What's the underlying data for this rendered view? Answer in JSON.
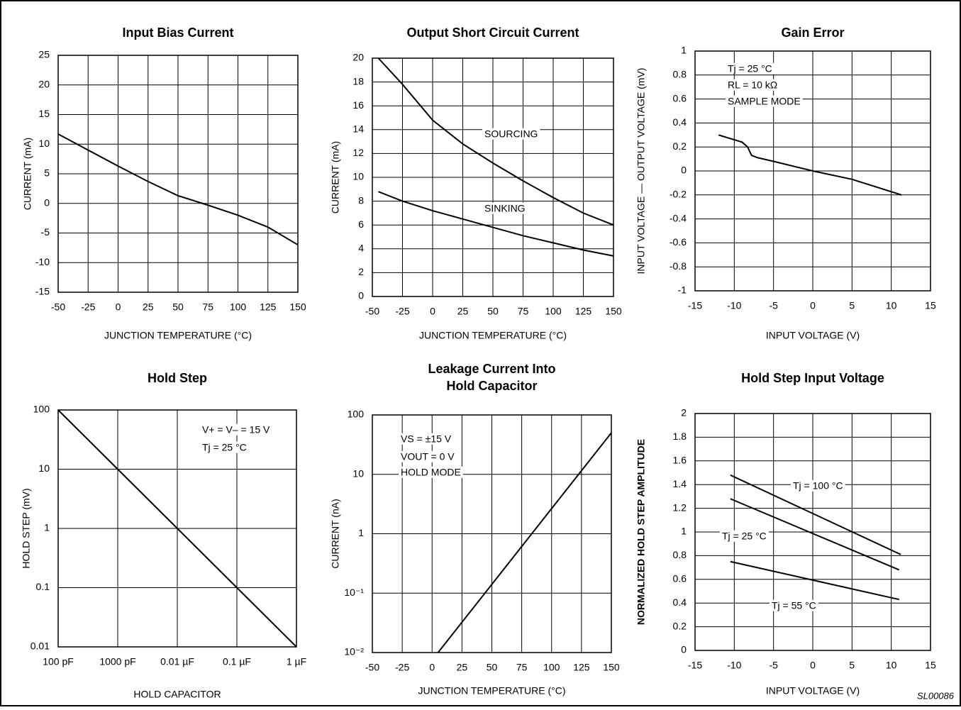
{
  "chart_data": [
    {
      "type": "line",
      "title": "Input Bias Current",
      "xlabel": "JUNCTION TEMPERATURE (°C)",
      "ylabel": "CURRENT (mA)",
      "xlim": [
        -50,
        150
      ],
      "ylim": [
        -15,
        25
      ],
      "xticks": [
        -50,
        -25,
        0,
        25,
        50,
        75,
        100,
        125,
        150
      ],
      "yticks": [
        -15,
        -10,
        -5,
        0,
        5,
        10,
        15,
        20,
        25
      ],
      "grid": true,
      "series": [
        {
          "color": "#000000",
          "x": [
            -50,
            -25,
            0,
            25,
            50,
            75,
            100,
            125,
            150
          ],
          "values": [
            11.7,
            9,
            6.3,
            3.7,
            1.3,
            -0.3,
            -2,
            -4,
            -7
          ]
        }
      ]
    },
    {
      "type": "line",
      "title": "Output Short Circuit Current",
      "xlabel": "JUNCTION TEMPERATURE (°C)",
      "ylabel": "CURRENT (mA)",
      "xlim": [
        -50,
        150
      ],
      "ylim": [
        0,
        20
      ],
      "xticks": [
        -50,
        -25,
        0,
        25,
        50,
        75,
        100,
        125,
        150
      ],
      "yticks": [
        0,
        2,
        4,
        6,
        8,
        10,
        12,
        14,
        16,
        18,
        20
      ],
      "grid": true,
      "series": [
        {
          "name": "SOURCING",
          "color": "#000000",
          "x": [
            -45,
            -25,
            -10,
            0,
            25,
            50,
            75,
            100,
            125,
            150
          ],
          "values": [
            20,
            17.8,
            16,
            14.8,
            12.8,
            11.2,
            9.7,
            8.3,
            7,
            6
          ]
        },
        {
          "name": "SINKING",
          "color": "#000000",
          "x": [
            -45,
            -25,
            0,
            25,
            50,
            75,
            100,
            125,
            150
          ],
          "values": [
            8.8,
            8,
            7.2,
            6.5,
            5.8,
            5.1,
            4.5,
            3.9,
            3.4
          ]
        }
      ]
    },
    {
      "type": "line",
      "title": "Gain Error",
      "xlabel": "INPUT VOLTAGE (V)",
      "ylabel": "INPUT VOLTAGE — OUTPUT VOLTAGE (mV)",
      "xlim": [
        -15,
        15
      ],
      "ylim": [
        -1,
        1
      ],
      "xticks": [
        -15,
        -10,
        -5,
        0,
        5,
        10,
        15
      ],
      "yticks": [
        -1,
        -0.8,
        -0.6,
        -0.4,
        -0.2,
        0,
        0.2,
        0.4,
        0.6,
        0.8,
        1
      ],
      "grid": true,
      "annotations": [
        "Tj = 25 °C",
        "RL = 10 kΩ",
        "SAMPLE MODE"
      ],
      "series": [
        {
          "color": "#000000",
          "x": [
            -12,
            -9,
            -8.3,
            -7.8,
            -7,
            -5,
            0,
            5,
            11.3
          ],
          "values": [
            0.3,
            0.24,
            0.2,
            0.13,
            0.11,
            0.08,
            0,
            -0.07,
            -0.2
          ]
        }
      ]
    },
    {
      "type": "line",
      "title": "Hold Step",
      "xlabel": "HOLD CAPACITOR",
      "ylabel": "HOLD STEP (mV)",
      "xscale": "log",
      "yscale": "log",
      "xlim": [
        100,
        1000000
      ],
      "ylim": [
        0.01,
        100
      ],
      "xticks": [
        {
          "value": 100,
          "label": "100 pF"
        },
        {
          "value": 1000,
          "label": "1000 pF"
        },
        {
          "value": 10000,
          "label": "0.01 µF"
        },
        {
          "value": 100000,
          "label": "0.1 µF"
        },
        {
          "value": 1000000,
          "label": "1 µF"
        }
      ],
      "yticks": [
        0.01,
        0.1,
        1,
        10,
        100
      ],
      "grid": true,
      "annotations": [
        "V+ = V– = 15 V",
        "Tj = 25 °C"
      ],
      "series": [
        {
          "color": "#000000",
          "x": [
            100,
            1000,
            10000,
            100000,
            1000000
          ],
          "values": [
            100,
            10,
            1,
            0.1,
            0.01
          ]
        }
      ]
    },
    {
      "type": "line",
      "title": [
        "Leakage Current Into",
        "Hold Capacitor"
      ],
      "xlabel": "JUNCTION TEMPERATURE (°C)",
      "ylabel": "CURRENT (nA)",
      "yscale": "log",
      "xlim": [
        -50,
        150
      ],
      "ylim": [
        0.01,
        100
      ],
      "xticks": [
        -50,
        -25,
        0,
        25,
        50,
        75,
        100,
        125,
        150
      ],
      "yticks": [
        {
          "value": 0.01,
          "label": "10⁻²"
        },
        {
          "value": 0.1,
          "label": "10⁻¹"
        },
        1,
        10,
        100
      ],
      "grid": true,
      "annotations": [
        "VS = ±15 V",
        "VOUT = 0 V",
        "HOLD MODE"
      ],
      "series": [
        {
          "color": "#000000",
          "x": [
            5,
            150
          ],
          "values": [
            0.01,
            50
          ]
        }
      ]
    },
    {
      "type": "line",
      "title": "Hold Step Input Voltage",
      "xlabel": "INPUT VOLTAGE (V)",
      "ylabel": "NORMALIZED HOLD STEP AMPLITUDE",
      "xlim": [
        -15,
        15
      ],
      "ylim": [
        0,
        2
      ],
      "xticks": [
        -15,
        -10,
        -5,
        0,
        5,
        10,
        15
      ],
      "yticks": [
        0,
        0.2,
        0.4,
        0.6,
        0.8,
        1,
        1.2,
        1.4,
        1.6,
        1.8,
        2
      ],
      "grid": true,
      "series": [
        {
          "name": "Tj = 100 °C",
          "color": "#000000",
          "x": [
            -10.5,
            11.2
          ],
          "values": [
            1.48,
            0.81
          ]
        },
        {
          "name": "Tj = 25 °C",
          "color": "#000000",
          "x": [
            -10.5,
            11
          ],
          "values": [
            1.28,
            0.68
          ]
        },
        {
          "name": "Tj = 55 °C",
          "color": "#000000",
          "x": [
            -10.5,
            11
          ],
          "values": [
            0.75,
            0.43
          ]
        }
      ]
    }
  ],
  "figure_code": "SL00086"
}
